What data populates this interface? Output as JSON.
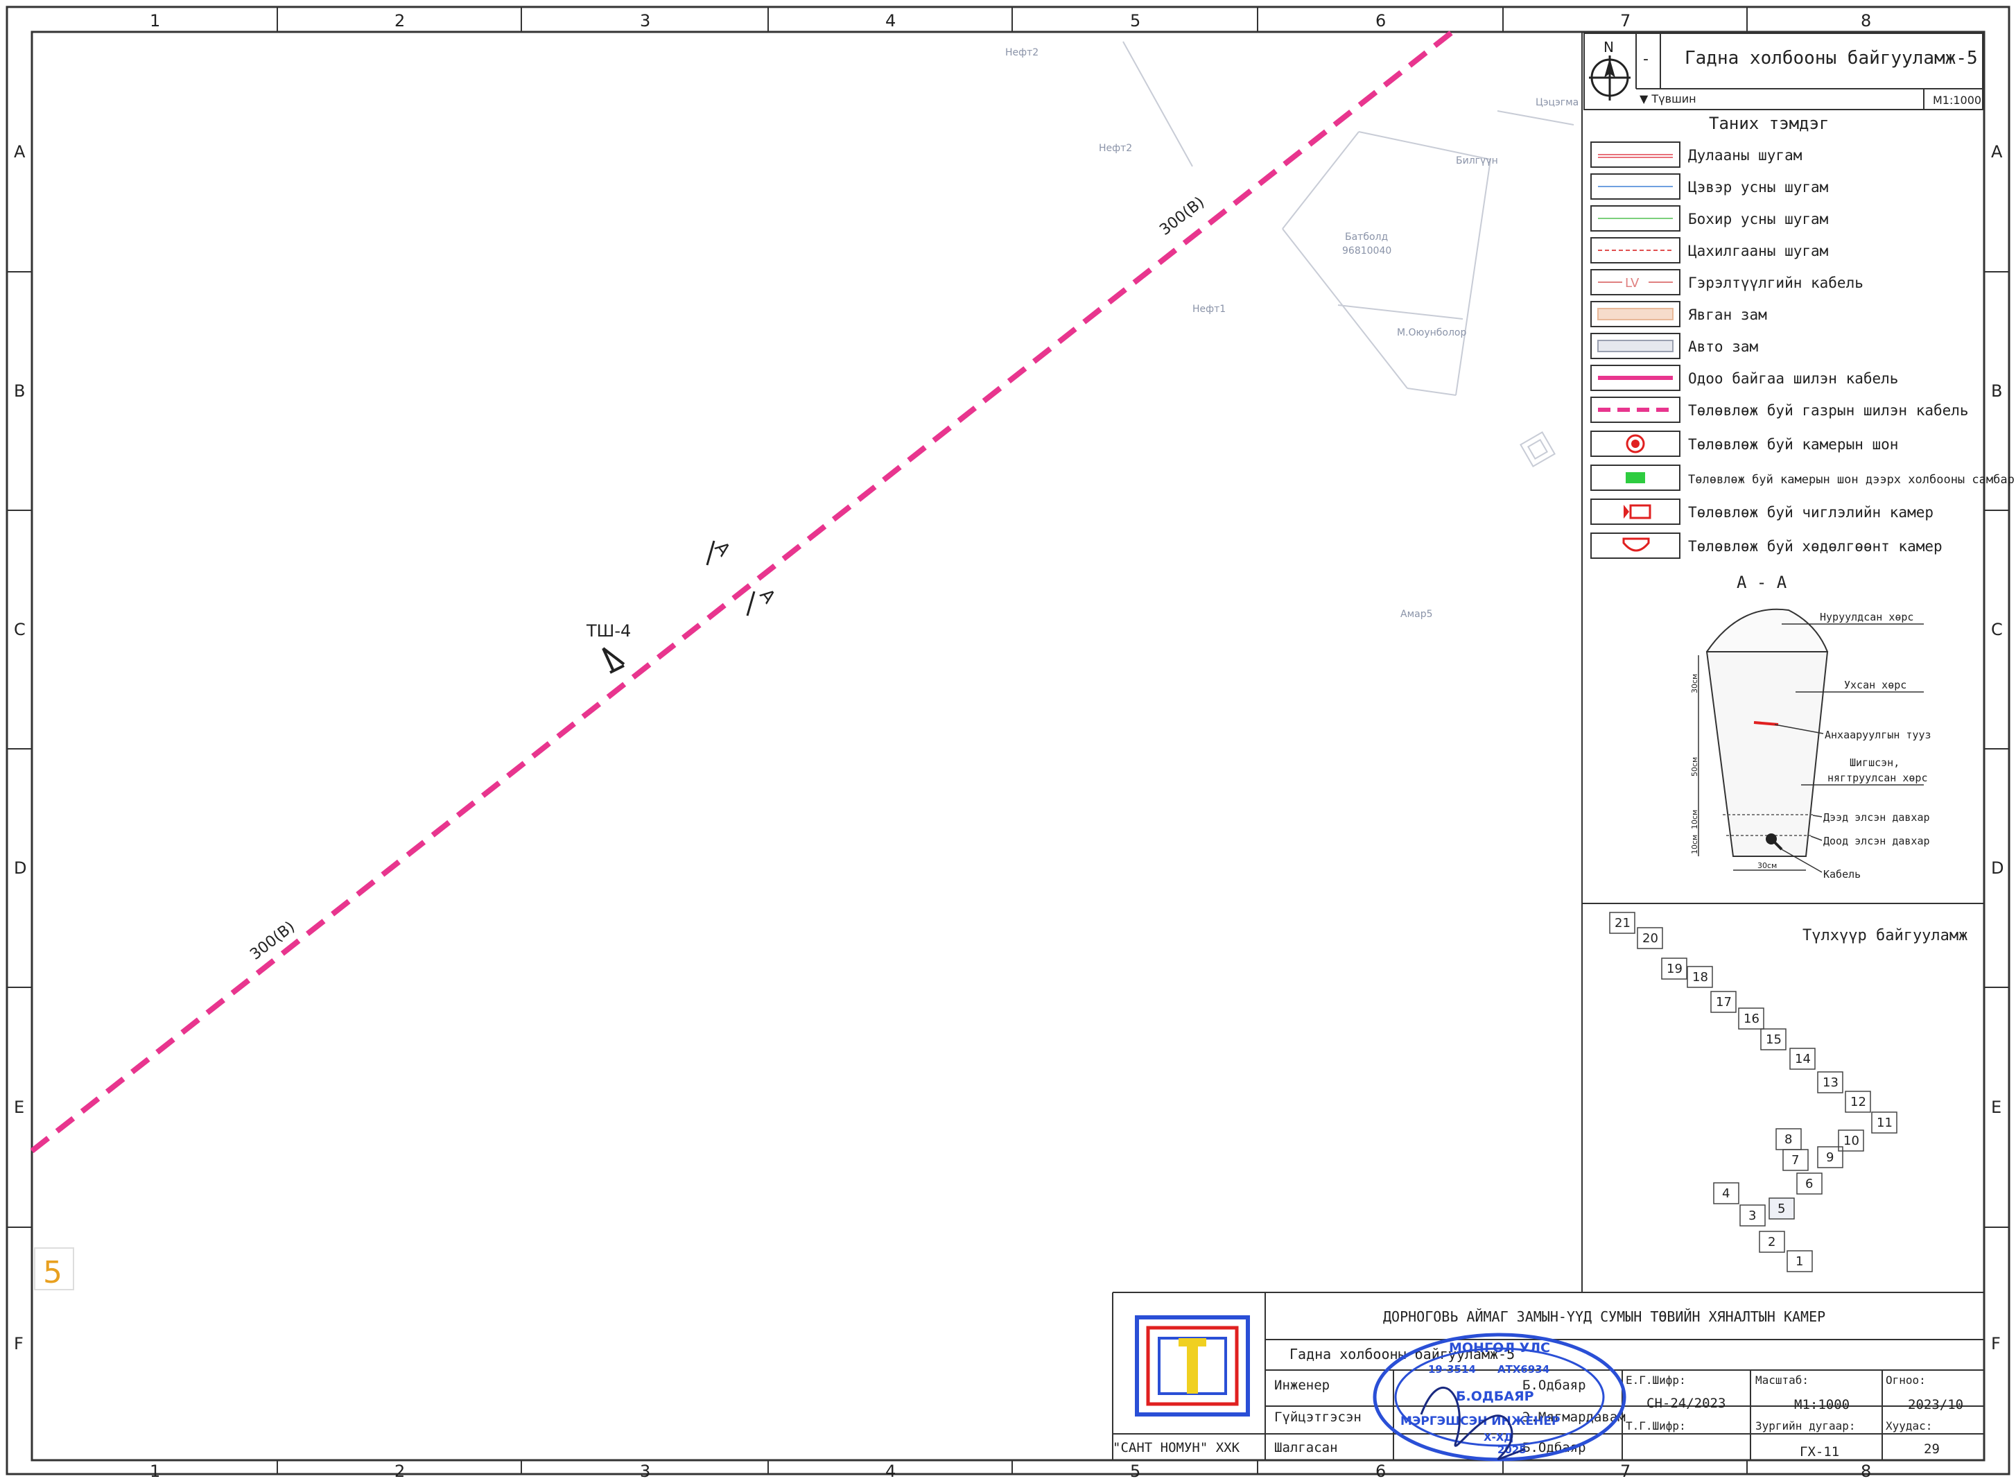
{
  "frame": {
    "columns": [
      "1",
      "2",
      "3",
      "4",
      "5",
      "6",
      "7",
      "8"
    ],
    "rows": [
      "A",
      "B",
      "C",
      "D",
      "E",
      "F"
    ]
  },
  "map": {
    "cable_labels": [
      "300(B)",
      "300(B)"
    ],
    "section_marks": [
      "A",
      "A"
    ],
    "pole_label": "ТШ-4",
    "sheet_number": "5",
    "parcels": [
      "Нефт2",
      "Нефт2",
      "Цэцэгма",
      "Билгүүн",
      "Батболд",
      "96810040",
      "Нефт1",
      "М.Оюунболор",
      "Амар5"
    ]
  },
  "title_block_top": {
    "north": "N",
    "dash": "-",
    "title": "Гадна холбооны байгууламж-5",
    "depth_label": "▼ Түвшин",
    "scale": "М1:1000"
  },
  "legend": {
    "title": "Таних тэмдэг",
    "items": [
      {
        "label": "Дулааны шугам",
        "color": "#e8707a"
      },
      {
        "label": "Цэвэр усны шугам",
        "color": "#6fa0e0"
      },
      {
        "label": "Бохир усны шугам",
        "color": "#7ccf7c"
      },
      {
        "label": "Цахилгааны шугам",
        "color": "#e05050"
      },
      {
        "label": "Гэрэлтүүлгийн кабель",
        "color": "#e08080",
        "symbol_text": "LV"
      },
      {
        "label": "Явган зам",
        "color": "#e8b898"
      },
      {
        "label": "Авто зам",
        "color": "#9aa0b0"
      },
      {
        "label": "Одоо байгаа шилэн кабель",
        "color": "#e8358e"
      },
      {
        "label": "Төлөвлөж буй газрын шилэн кабель",
        "color": "#e8358e"
      },
      {
        "label": "Төлөвлөж буй камерын шон",
        "color": "#e02020"
      },
      {
        "label": "Төлөвлөж буй камерын шон дээрх холбооны самбар",
        "color": "#2ecc40"
      },
      {
        "label": "Төлөвлөж буй чиглэлийн камер",
        "color": "#e02020"
      },
      {
        "label": "Төлөвлөж буй хөдөлгөөнт камер",
        "color": "#e02020"
      }
    ]
  },
  "section": {
    "title": "A  -  A",
    "labels": [
      "Нуруулдсан хөрс",
      "Ухсан хөрс",
      "Анхааруулгын тууз",
      "Шигшсэн,",
      "нягтруулсан хөрс",
      "Дээд элсэн давхар",
      "Доод элсэн давхар",
      "Кабель"
    ],
    "dims": [
      "30см",
      "50см",
      "10см",
      "10см",
      "30см"
    ]
  },
  "key_plan": {
    "title": "Түлхүүр байгууламж",
    "cells": [
      "21",
      "20",
      "19",
      "18",
      "17",
      "16",
      "15",
      "14",
      "13",
      "12",
      "11",
      "10",
      "9",
      "8",
      "7",
      "6",
      "5",
      "4",
      "3",
      "2",
      "1"
    ]
  },
  "title_block": {
    "project": "ДОРНОГОВЬ АЙМАГ ЗАМЫН-ҮҮД СУМЫН ТӨВИЙН ХЯНАЛТЫН КАМЕР",
    "sheet_title": "Гадна холбооны байгууламж-5",
    "company": "\"САНТ НОМУН\" ХХК",
    "roles": [
      {
        "role": "Инженер",
        "name": "Б.Одбаяр"
      },
      {
        "role": "Гүйцэтгэсэн",
        "name": "Э.Мягмардавам"
      },
      {
        "role": "Шалгасан",
        "name": "Б.Одбаяр"
      }
    ],
    "eg_code_label": "Е.Г.Шифр:",
    "eg_code": "СН-24/2023",
    "tg_code_label": "Т.Г.Шифр:",
    "scale_label": "Масштаб:",
    "scale": "М1:1000",
    "date_label": "Огноо:",
    "date": "2023/10",
    "drawing_no_label": "Зургийн дугаар:",
    "drawing_no": "ГХ-11",
    "page_label": "Хуудас:",
    "page": "29"
  },
  "stamp": {
    "lines": [
      "МОНГОЛ УЛС",
      "19-3514",
      "АТХ6934",
      "Б.ОДБАЯР",
      "МЭРГЭШСЭН ИНЖЕНЕР",
      "Х-ХД",
      "2025"
    ]
  }
}
